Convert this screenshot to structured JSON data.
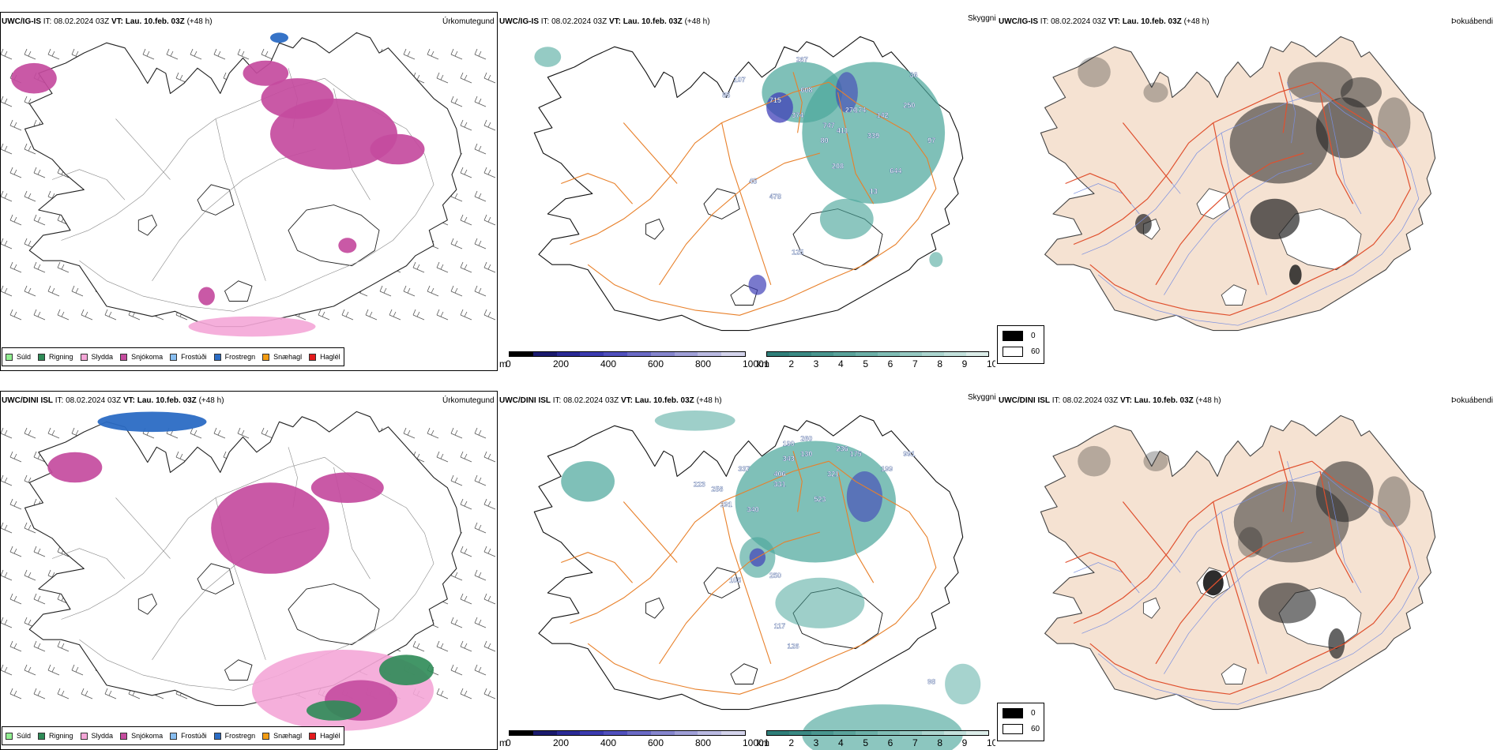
{
  "rows": [
    {
      "model": "UWC/IG-IS",
      "it_label": "IT:",
      "it_value": "08.02.2024 03Z",
      "vt_label": "VT:",
      "vt_value": "Lau. 10.feb. 03Z",
      "lead": "(+48 h)"
    },
    {
      "model": "UWC/DINI ISL",
      "it_label": "IT:",
      "it_value": "08.02.2024 03Z",
      "vt_label": "VT:",
      "vt_value": "Lau. 10.feb. 03Z",
      "lead": "(+48 h)"
    }
  ],
  "panel_titles": {
    "precip_type": "Úrkomutegund",
    "cloud": "Skyggni",
    "fog": "Þokuábendi"
  },
  "legend_items": [
    {
      "label": "Súld",
      "color": "#90ee90"
    },
    {
      "label": "Rigning",
      "color": "#2e8b57"
    },
    {
      "label": "Slydda",
      "color": "#f4a6d7"
    },
    {
      "label": "Snjókoma",
      "color": "#c44b9e"
    },
    {
      "label": "Frostúði",
      "color": "#87bdf0"
    },
    {
      "label": "Frostregn",
      "color": "#2b6cc4"
    },
    {
      "label": "Snæhagl",
      "color": "#f39c12"
    },
    {
      "label": "Haglél",
      "color": "#e31a1c"
    }
  ],
  "scale_m": {
    "unit": "m",
    "ticks": [
      "0",
      "200",
      "400",
      "600",
      "800",
      "1000"
    ],
    "colors": [
      "#000000",
      "#1a1a6e",
      "#2a2a96",
      "#3b3bb0",
      "#5050bd",
      "#6b6bc6",
      "#8686ce",
      "#a0a0d8",
      "#babae2",
      "#d4d4ec"
    ]
  },
  "scale_km": {
    "unit": "km",
    "ticks": [
      "1",
      "2",
      "3",
      "4",
      "5",
      "6",
      "7",
      "8",
      "9",
      "10"
    ],
    "colors": [
      "#2f7f7a",
      "#3a8a84",
      "#49968f",
      "#5aa39b",
      "#6cb0a8",
      "#80bdb5",
      "#96c9c2",
      "#acd5cf",
      "#c3e1dc",
      "#dcede9"
    ]
  },
  "fog_legend": {
    "high": "0",
    "low": "60",
    "high_color": "#000000",
    "low_color": "#ffffff"
  },
  "ceiling_labels": {
    "top": [
      "267",
      "107",
      "85",
      "715",
      "608",
      "374",
      "747",
      "411",
      "339",
      "80",
      "208",
      "644",
      "478",
      "142",
      "276",
      "250",
      "36",
      "174",
      "97",
      "13",
      "125",
      "45"
    ],
    "bottom": [
      "190",
      "260",
      "236",
      "175",
      "991",
      "343",
      "130",
      "406",
      "337",
      "321",
      "223",
      "258",
      "331",
      "523",
      "199",
      "291",
      "340",
      "105",
      "250",
      "117",
      "126",
      "98"
    ]
  },
  "colors": {
    "coast": "#1a1a1a",
    "road": "#e8802a",
    "fog_land": "#f5e2d2",
    "fog_road": "#e0502e",
    "fog_river": "#7a8fe0",
    "snow": "#c44b9e",
    "sleet": "#f4a6d7",
    "rain": "#2e8b57",
    "freezing_rain": "#2b6cc4",
    "cloud_teal": "#4ea89d",
    "cloud_blue": "#4040b8"
  }
}
